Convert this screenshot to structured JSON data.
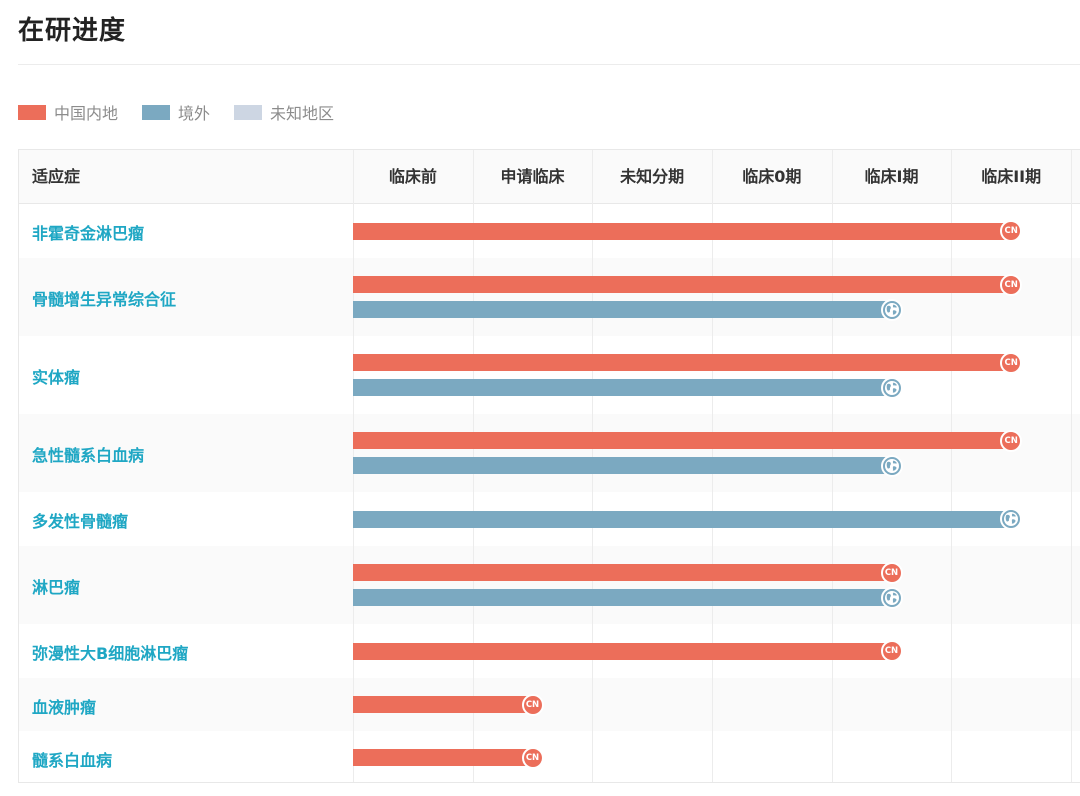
{
  "page": {
    "title": "在研进度"
  },
  "legend": [
    {
      "label": "中国内地",
      "color": "#ec6e5a"
    },
    {
      "label": "境外",
      "color": "#7ba9c1"
    },
    {
      "label": "未知地区",
      "color": "#cdd6e3"
    }
  ],
  "table": {
    "first_header": "适应症",
    "phase_headers": [
      "临床前",
      "申请临床",
      "未知分期",
      "临床0期",
      "临床I期",
      "临床II期"
    ]
  },
  "badge_icons": {
    "china": "CN",
    "overseas": "globe-icon"
  },
  "colors": {
    "china": "#ec6e5a",
    "overseas": "#7ba9c1",
    "unknown": "#cdd6e3",
    "label": "#1fa7c4"
  },
  "chart_data": {
    "type": "bar",
    "orientation": "horizontal",
    "categories": [
      "非霍奇金淋巴瘤",
      "骨髓增生异常综合征",
      "实体瘤",
      "急性髓系白血病",
      "多发性骨髓瘤",
      "淋巴瘤",
      "弥漫性大B细胞淋巴瘤",
      "血液肿瘤",
      "髓系白血病"
    ],
    "phases": [
      "临床前",
      "申请临床",
      "未知分期",
      "临床0期",
      "临床I期",
      "临床II期"
    ],
    "series": [
      {
        "name": "中国内地",
        "values": [
          "临床II期",
          "临床II期",
          "临床II期",
          "临床II期",
          null,
          "临床I期",
          "临床I期",
          "申请临床",
          "申请临床"
        ]
      },
      {
        "name": "境外",
        "values": [
          null,
          "临床I期",
          "临床I期",
          "临床I期",
          "临床II期",
          "临床I期",
          null,
          null,
          null
        ]
      },
      {
        "name": "未知地区",
        "values": [
          null,
          null,
          null,
          null,
          null,
          null,
          null,
          null,
          null
        ]
      }
    ]
  }
}
